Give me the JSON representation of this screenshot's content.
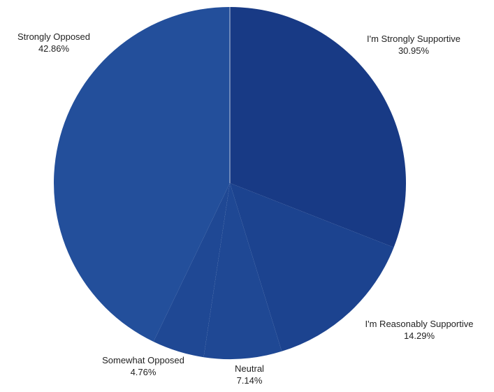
{
  "chart_data": {
    "type": "pie",
    "title": "",
    "start_angle_deg": 0,
    "direction": "clockwise",
    "slices": [
      {
        "label": "I'm Strongly Supportive",
        "value": 30.95,
        "value_label": "30.95%",
        "color": "#183a85"
      },
      {
        "label": "I'm Reasonably Supportive",
        "value": 14.29,
        "value_label": "14.29%",
        "color": "#1c438f"
      },
      {
        "label": "Neutral",
        "value": 7.14,
        "value_label": "7.14%",
        "color": "#1f4894"
      },
      {
        "label": "Somewhat Opposed",
        "value": 4.76,
        "value_label": "4.76%",
        "color": "#1f4894"
      },
      {
        "label": "Strongly Opposed",
        "value": 42.86,
        "value_label": "42.86%",
        "color": "#234f9b"
      }
    ],
    "separator_color": "#ffffff"
  }
}
